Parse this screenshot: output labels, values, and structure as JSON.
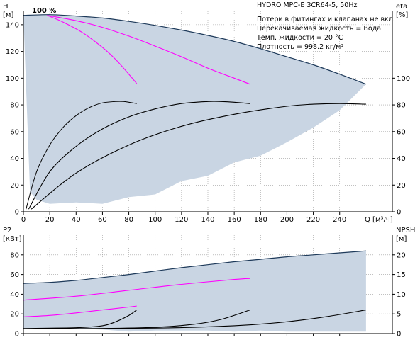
{
  "chart_data": [
    {
      "type": "line",
      "title": "HYDRO MPC-E 3CR64-5, 50Hz",
      "info_lines": [
        "Потери в фитингах и клапанах не вкл.",
        "Перекачиваемая жидкость = Вода",
        "Темп. жидкости = 20 °C",
        "Плотность = 998.2 кг/м³"
      ],
      "speed_label": "100 %",
      "y_left_label": [
        "H",
        "[м]"
      ],
      "y_right_label": [
        "eta",
        "[%]"
      ],
      "x_label": "Q [м³/ч]",
      "x_ticks": [
        "0",
        "20",
        "40",
        "60",
        "80",
        "100",
        "120",
        "140",
        "160",
        "180",
        "200",
        "220",
        "240"
      ],
      "y_left_ticks": [
        "0",
        "20",
        "40",
        "60",
        "80",
        "100",
        "120",
        "140"
      ],
      "y_right_ticks": [
        "0",
        "20",
        "40",
        "60",
        "80",
        "100"
      ],
      "xlim": [
        0,
        280
      ],
      "ylim_left": [
        0,
        150
      ],
      "ylim_right": [
        0,
        150
      ],
      "grid": true,
      "colors": {
        "envelope": "#c9d5e3",
        "envelope_edge": "#1e3a5a",
        "head": "#ff00ff",
        "efficiency": "#000000",
        "grid": "#9a9a9a"
      },
      "envelope_top": {
        "x": [
          0,
          20,
          40,
          60,
          80,
          100,
          120,
          140,
          160,
          180,
          200,
          220,
          240,
          260
        ],
        "y": [
          147,
          147.5,
          146.5,
          145,
          142.5,
          139.5,
          136,
          132,
          127.5,
          122,
          116,
          110,
          103,
          95.5
        ]
      },
      "envelope_bottom": {
        "x": [
          0,
          5,
          10,
          20,
          40,
          60,
          80,
          100,
          120,
          140,
          160,
          180,
          200,
          220,
          240,
          260
        ],
        "y": [
          147,
          15,
          9,
          6,
          7,
          6,
          11,
          13,
          23,
          27,
          37,
          42,
          52,
          63,
          76,
          95.5
        ]
      },
      "series": [
        {
          "kind": "head",
          "x": [
            18,
            30,
            45,
            60,
            70,
            80,
            86
          ],
          "y": [
            147,
            142,
            134,
            123,
            114,
            103,
            96
          ]
        },
        {
          "kind": "head",
          "x": [
            18,
            40,
            60,
            80,
            100,
            120,
            140,
            160,
            172
          ],
          "y": [
            147,
            143,
            138,
            131.5,
            124,
            116,
            107.5,
            100,
            95.5
          ]
        },
        {
          "kind": "efficiency",
          "x": [
            2,
            10,
            20,
            30,
            40,
            50,
            60,
            70,
            76,
            86
          ],
          "y": [
            2,
            30,
            50,
            63,
            72,
            78,
            81.5,
            82.5,
            82.5,
            81
          ]
        },
        {
          "kind": "efficiency",
          "x": [
            4,
            20,
            40,
            60,
            80,
            100,
            120,
            140,
            150,
            160,
            172
          ],
          "y": [
            2,
            30,
            49,
            62,
            71,
            77,
            81,
            82.5,
            82.5,
            82,
            81
          ]
        },
        {
          "kind": "efficiency",
          "x": [
            6,
            40,
            80,
            120,
            160,
            200,
            220,
            240,
            260
          ],
          "y": [
            2,
            29,
            50,
            64,
            73,
            79,
            80.5,
            81,
            80.5
          ]
        }
      ]
    },
    {
      "type": "line",
      "y_left_label": [
        "P2",
        "[кВт]"
      ],
      "y_right_label": [
        "NPSH",
        "[м]"
      ],
      "y_left_ticks": [
        "0",
        "20",
        "40",
        "60",
        "80"
      ],
      "y_right_ticks": [
        "0",
        "5",
        "10",
        "15",
        "20"
      ],
      "xlim": [
        0,
        280
      ],
      "ylim_left": [
        0,
        100
      ],
      "ylim_right": [
        0,
        25
      ],
      "grid": true,
      "envelope_top": {
        "x": [
          0,
          20,
          40,
          60,
          80,
          100,
          120,
          140,
          160,
          180,
          200,
          220,
          240,
          260
        ],
        "y": [
          51,
          52,
          54,
          57,
          60,
          63.5,
          67,
          70,
          73,
          75.5,
          78,
          80,
          82,
          84
        ]
      },
      "envelope_bottom": {
        "x": [
          0,
          20,
          40,
          60,
          70,
          80,
          100,
          120,
          140,
          160,
          180,
          200,
          220,
          240,
          260
        ],
        "y": [
          5,
          5,
          5,
          4,
          3,
          2,
          3,
          3,
          3,
          2,
          3,
          2,
          2,
          2,
          2
        ]
      },
      "series": [
        {
          "kind": "power",
          "x": [
            0,
            20,
            40,
            60,
            80,
            86
          ],
          "y": [
            17,
            18.5,
            21,
            24,
            27,
            28
          ]
        },
        {
          "kind": "power",
          "x": [
            0,
            40,
            80,
            120,
            160,
            172
          ],
          "y": [
            34,
            38,
            44,
            50,
            55,
            56
          ]
        },
        {
          "kind": "npsh",
          "x": [
            0,
            40,
            60,
            70,
            80,
            86
          ],
          "y": [
            1.3,
            1.5,
            2.0,
            3.0,
            4.6,
            6.0
          ]
        },
        {
          "kind": "npsh",
          "x": [
            0,
            60,
            100,
            130,
            150,
            172
          ],
          "y": [
            1.2,
            1.3,
            1.6,
            2.4,
            3.6,
            6.0
          ]
        },
        {
          "kind": "npsh",
          "x": [
            0,
            100,
            160,
            200,
            230,
            260
          ],
          "y": [
            1.2,
            1.4,
            2.0,
            3.0,
            4.3,
            6.0
          ]
        }
      ]
    }
  ]
}
